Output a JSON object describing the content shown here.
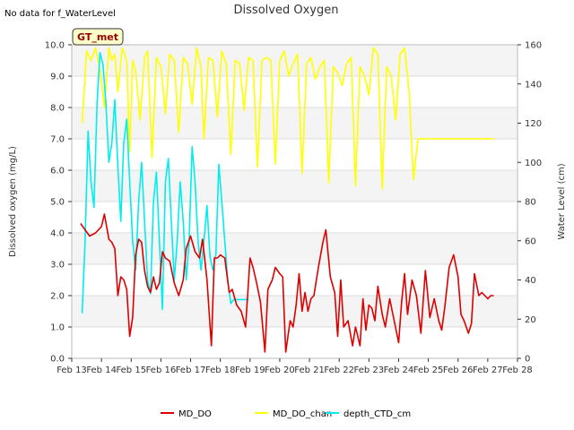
{
  "note": "No data for f_WaterLevel",
  "badge": "GT_met",
  "chart_data": {
    "type": "line",
    "title": "Dissolved Oxygen",
    "ylabel": "Dissolved oxygen (mg/L)",
    "y2label": "Water Level (cm)",
    "x_ticks": [
      "Feb 13",
      "Feb 14",
      "Feb 15",
      "Feb 16",
      "Feb 17",
      "Feb 18",
      "Feb 19",
      "Feb 20",
      "Feb 21",
      "Feb 22",
      "Feb 23",
      "Feb 24",
      "Feb 25",
      "Feb 26",
      "Feb 27",
      "Feb 28"
    ],
    "xlim": [
      13,
      28
    ],
    "ylim": [
      0,
      10
    ],
    "y_ticks": [
      "0.0",
      "1.0",
      "2.0",
      "3.0",
      "4.0",
      "5.0",
      "6.0",
      "7.0",
      "8.0",
      "9.0",
      "10.0"
    ],
    "y2lim": [
      0,
      160
    ],
    "y2_ticks": [
      "0",
      "20",
      "40",
      "60",
      "80",
      "100",
      "120",
      "140",
      "160"
    ],
    "grid_bands": true,
    "legend_position": "bottom",
    "series": [
      {
        "name": "MD_DO",
        "color": "#dd0000",
        "axis": "left",
        "x": [
          13.3,
          13.45,
          13.6,
          13.8,
          14.0,
          14.1,
          14.25,
          14.35,
          14.45,
          14.55,
          14.65,
          14.75,
          14.85,
          14.95,
          15.05,
          15.15,
          15.25,
          15.35,
          15.45,
          15.55,
          15.65,
          15.75,
          15.85,
          15.95,
          16.05,
          16.15,
          16.3,
          16.45,
          16.6,
          16.75,
          16.85,
          17.0,
          17.15,
          17.3,
          17.4,
          17.55,
          17.7,
          17.8,
          17.9,
          18.0,
          18.15,
          18.3,
          18.4,
          18.55,
          18.7,
          18.85,
          19.0,
          19.1,
          19.2,
          19.35,
          19.5,
          19.6,
          19.75,
          19.85,
          20.0,
          20.1,
          20.2,
          20.35,
          20.45,
          20.55,
          20.65,
          20.75,
          20.85,
          20.95,
          21.05,
          21.15,
          21.3,
          21.45,
          21.55,
          21.7,
          21.85,
          21.95,
          22.05,
          22.15,
          22.3,
          22.45,
          22.55,
          22.7,
          22.8,
          22.9,
          23.0,
          23.1,
          23.2,
          23.3,
          23.45,
          23.55,
          23.7,
          23.85,
          24.0,
          24.1,
          24.2,
          24.3,
          24.45,
          24.6,
          24.75,
          24.9,
          25.05,
          25.2,
          25.35,
          25.45,
          25.55,
          25.7,
          25.85,
          26.0,
          26.1,
          26.2,
          26.35,
          26.45,
          26.55,
          26.7,
          26.8,
          26.9,
          27.0,
          27.1,
          27.2
        ],
        "values": [
          4.3,
          4.1,
          3.9,
          4.0,
          4.2,
          4.6,
          3.8,
          3.7,
          3.5,
          2.0,
          2.6,
          2.5,
          2.2,
          0.7,
          1.3,
          3.3,
          3.8,
          3.7,
          2.8,
          2.3,
          2.1,
          2.6,
          2.2,
          2.4,
          3.4,
          3.2,
          3.1,
          2.4,
          2.0,
          2.5,
          3.5,
          3.9,
          3.4,
          3.2,
          3.8,
          2.5,
          0.4,
          3.2,
          3.2,
          3.3,
          3.2,
          2.1,
          2.2,
          1.7,
          1.5,
          1.0,
          3.2,
          2.9,
          2.5,
          1.8,
          0.2,
          2.2,
          2.5,
          2.9,
          2.7,
          2.6,
          0.2,
          1.2,
          1.0,
          1.7,
          2.7,
          1.5,
          2.1,
          1.5,
          1.9,
          2.0,
          2.9,
          3.7,
          4.1,
          2.6,
          2.1,
          0.7,
          2.5,
          1.0,
          1.2,
          0.4,
          1.0,
          0.4,
          1.9,
          0.9,
          1.7,
          1.6,
          1.2,
          2.3,
          1.4,
          1.0,
          1.9,
          1.2,
          0.5,
          1.8,
          2.7,
          1.4,
          2.5,
          2.0,
          0.8,
          2.8,
          1.3,
          1.9,
          1.2,
          0.9,
          1.6,
          2.9,
          3.3,
          2.6,
          1.4,
          1.2,
          0.8,
          1.1,
          2.7,
          2.0,
          2.1,
          2.0,
          1.9,
          2.0,
          2.0
        ]
      },
      {
        "name": "MD_DO_chan",
        "color": "#ffff00",
        "axis": "left",
        "x": [
          13.35,
          13.5,
          13.65,
          13.8,
          13.95,
          14.1,
          14.25,
          14.35,
          14.45,
          14.55,
          14.7,
          14.85,
          14.95,
          15.05,
          15.15,
          15.3,
          15.45,
          15.55,
          15.7,
          15.85,
          16.0,
          16.15,
          16.3,
          16.45,
          16.6,
          16.75,
          16.9,
          17.05,
          17.2,
          17.35,
          17.45,
          17.6,
          17.75,
          17.9,
          18.05,
          18.2,
          18.35,
          18.5,
          18.65,
          18.8,
          18.95,
          19.1,
          19.25,
          19.4,
          19.55,
          19.7,
          19.85,
          20.0,
          20.15,
          20.3,
          20.45,
          20.6,
          20.75,
          20.9,
          21.05,
          21.2,
          21.35,
          21.5,
          21.65,
          21.8,
          21.95,
          22.1,
          22.25,
          22.4,
          22.55,
          22.7,
          22.85,
          23.0,
          23.15,
          23.3,
          23.45,
          23.6,
          23.75,
          23.9,
          24.05,
          24.2,
          24.35,
          24.5,
          24.65,
          24.8,
          24.95,
          25.1,
          25.25,
          25.4,
          25.55,
          25.7,
          25.85,
          26.0,
          26.15,
          26.3,
          26.45,
          26.6,
          26.75,
          26.9,
          27.05,
          27.2
        ],
        "values": [
          7.5,
          9.8,
          9.5,
          9.9,
          9.2,
          8.0,
          9.9,
          9.5,
          9.7,
          8.5,
          9.9,
          9.5,
          6.6,
          9.5,
          9.2,
          7.6,
          9.6,
          9.8,
          6.4,
          9.6,
          9.3,
          7.8,
          9.7,
          9.5,
          7.2,
          9.6,
          9.4,
          8.1,
          9.9,
          9.3,
          7.0,
          9.6,
          9.5,
          7.7,
          9.8,
          9.4,
          6.5,
          9.5,
          9.4,
          7.9,
          9.6,
          9.5,
          6.1,
          9.5,
          9.6,
          9.5,
          6.2,
          9.5,
          9.8,
          9.0,
          9.4,
          9.7,
          5.9,
          9.4,
          9.6,
          8.9,
          9.3,
          9.5,
          5.6,
          9.3,
          9.1,
          8.7,
          9.4,
          9.6,
          5.5,
          9.3,
          9.0,
          8.4,
          9.9,
          9.7,
          5.4,
          9.3,
          9.0,
          7.6,
          9.7,
          9.9,
          8.5,
          5.7,
          7.0,
          7.0,
          7.0,
          7.0,
          7.0,
          7.0,
          7.0,
          7.0,
          7.0,
          7.0,
          7.0,
          7.0,
          7.0,
          7.0,
          7.0,
          7.0,
          7.0,
          7.0
        ]
      },
      {
        "name": "depth_CTD_cm",
        "color": "#00eeee",
        "axis": "right",
        "x": [
          13.35,
          13.45,
          13.55,
          13.65,
          13.75,
          13.85,
          13.95,
          14.05,
          14.15,
          14.25,
          14.35,
          14.45,
          14.55,
          14.65,
          14.75,
          14.85,
          14.95,
          15.05,
          15.15,
          15.25,
          15.35,
          15.45,
          15.55,
          15.65,
          15.75,
          15.85,
          15.95,
          16.05,
          16.15,
          16.25,
          16.35,
          16.45,
          16.55,
          16.65,
          16.75,
          16.85,
          16.95,
          17.05,
          17.15,
          17.25,
          17.35,
          17.45,
          17.55,
          17.65,
          17.75,
          17.85,
          17.95,
          18.05,
          18.15,
          18.25,
          18.35,
          18.45,
          18.55,
          18.65,
          18.75,
          18.85,
          18.95
        ],
        "values": [
          23,
          60,
          116,
          90,
          77,
          130,
          156,
          150,
          130,
          100,
          110,
          132,
          98,
          70,
          110,
          122,
          90,
          60,
          45,
          80,
          100,
          70,
          40,
          33,
          80,
          95,
          60,
          25,
          90,
          102,
          70,
          40,
          60,
          90,
          70,
          40,
          60,
          108,
          90,
          60,
          45,
          60,
          78,
          52,
          45,
          53,
          99,
          80,
          60,
          40,
          28,
          30,
          30,
          30,
          30,
          30,
          30
        ]
      }
    ]
  }
}
